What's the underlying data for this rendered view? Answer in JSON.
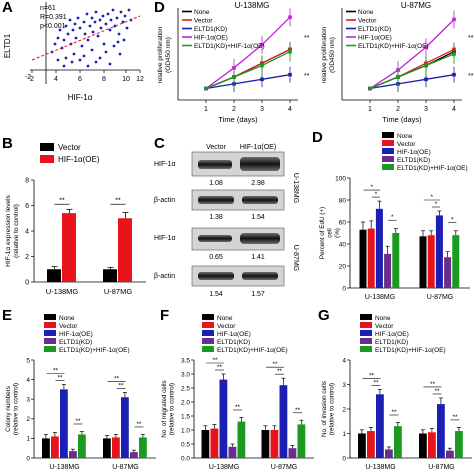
{
  "colors": {
    "none": "#000000",
    "vector": "#e8141c",
    "hif": "#1b1fb4",
    "eltd1": "#6a2c8e",
    "combo": "#1b9a22",
    "bar_red": "#e8141c",
    "trend": "#e8141c",
    "scatter": "#1b1fb4",
    "magenta": "#c020d8"
  },
  "panels": {
    "A": {
      "label": "A",
      "ylabel": "ELTD1",
      "xlabel": "HIF-1α",
      "stats": [
        "n=61",
        "R=0.391",
        "p<0.001"
      ],
      "xticks": [
        "2",
        "4",
        "6",
        "8",
        "10",
        "12"
      ],
      "yticks": [
        "-2"
      ]
    },
    "D_left": {
      "label": "D",
      "title": "U-138MG",
      "ylabel": [
        "relative proliferation",
        "(OD450 nm)"
      ],
      "xlabel": "Time (days)",
      "xticks": [
        "1",
        "2",
        "3",
        "4"
      ],
      "legend": [
        "None",
        "Vector",
        "ELTD1(KD)",
        "HIF-1α(OE)",
        "ELTD1(KD)+HIF-1α(OE)"
      ],
      "sig": [
        "**",
        "**"
      ]
    },
    "D_right": {
      "title": "U-87MG",
      "ylabel": [
        "relative proliferation",
        "(OD450 nm)"
      ],
      "xlabel": "Time (days)",
      "xticks": [
        "1",
        "2",
        "3",
        "4"
      ],
      "legend": [
        "None",
        "Vector",
        "ELTD1(KD)",
        "HIF-1α(OE)",
        "ELTD1(KD)+HIF-1α(OE)"
      ],
      "sig": [
        "**",
        "**"
      ]
    },
    "B": {
      "label": "B",
      "legend": [
        "Vector",
        "HIF-1α(OE)"
      ],
      "ylabel": [
        "HIF-1α expression levels",
        "(relative to control)"
      ],
      "groups": [
        "U-138MG",
        "U-87MG"
      ],
      "yticks": [
        "0",
        "2",
        "4",
        "6",
        "8"
      ],
      "sig": [
        "**",
        "**"
      ]
    },
    "C": {
      "label": "C",
      "cols": [
        "Vector",
        "HIF-1α(OE)"
      ],
      "u138": {
        "rows": [
          "HIF-1α",
          "β-actin"
        ],
        "values": [
          [
            "1.08",
            "2.98"
          ],
          [
            "1.38",
            "1.54"
          ]
        ],
        "cell": "U-138MG"
      },
      "u87": {
        "rows": [
          "HIF-1α",
          "β-actin"
        ],
        "values": [
          [
            "0.65",
            "1.41"
          ],
          [
            "1.54",
            "1.57"
          ]
        ],
        "cell": "U-87MG"
      }
    },
    "D_edu": {
      "label": "D",
      "legend": [
        "None",
        "Vector",
        "HIF-1α(OE)",
        "ELTD1(KD)",
        "ELTD1(KD)+HIF-1α(OE)"
      ],
      "ylabel": [
        "Percent of EdU (+)",
        "cell",
        "(%)"
      ],
      "groups": [
        "U-138MG",
        "U-87MG"
      ],
      "yticks": [
        "0",
        "20",
        "40",
        "60",
        "80",
        "100"
      ]
    },
    "E": {
      "label": "E",
      "legend": [
        "None",
        "Vector",
        "HIF-1α(OE)",
        "ELTD1(KD)",
        "ELTD1(KD)+HIF-1α(OE)"
      ],
      "ylabel": [
        "Colony numbers",
        "(relative to control)"
      ],
      "groups": [
        "U-138MG",
        "U-87MG"
      ],
      "yticks": [
        "0",
        "1",
        "2",
        "3",
        "4",
        "5"
      ]
    },
    "F": {
      "label": "F",
      "legend": [
        "None",
        "Vector",
        "HIF-1α(OE)",
        "ELTD1(KD)",
        "ELTD1(KD)+HIF-1α(OE)"
      ],
      "ylabel": [
        "No. of migrated cells",
        "(relative to control)"
      ],
      "groups": [
        "U-138MG",
        "U-87MG"
      ],
      "yticks": [
        "0.0",
        "0.5",
        "1.0",
        "1.5",
        "2.0",
        "2.5",
        "3.0",
        "3.5"
      ]
    },
    "G": {
      "label": "G",
      "legend": [
        "None",
        "Vector",
        "HIF-1α(OE)",
        "ELTD1(KD)",
        "ELTD1(KD)+HIF-1α(OE)"
      ],
      "ylabel": [
        "No. of invasion cells",
        "(relative to control)"
      ],
      "groups": [
        "U-138MG",
        "U-87MG"
      ],
      "yticks": [
        "0",
        "1",
        "2",
        "3",
        "4"
      ]
    }
  },
  "chart_data": [
    {
      "panel": "A",
      "type": "scatter",
      "xlabel": "HIF-1α",
      "ylabel": "ELTD1",
      "xlim": [
        2,
        12
      ],
      "annotations": [
        "n=61",
        "R=0.391",
        "p<0.001"
      ]
    },
    {
      "panel": "D",
      "type": "line",
      "title": "U-138MG",
      "xlabel": "Time (days)",
      "ylabel": "relative proliferation (OD450 nm)",
      "x": [
        1,
        2,
        3,
        4
      ],
      "series": [
        {
          "name": "None",
          "values": [
            0.5,
            1.0,
            1.6,
            2.2
          ]
        },
        {
          "name": "Vector",
          "values": [
            0.5,
            1.0,
            1.6,
            2.2
          ]
        },
        {
          "name": "ELTD1(KD)",
          "values": [
            0.5,
            0.7,
            0.9,
            1.1
          ]
        },
        {
          "name": "HIF-1α(OE)",
          "values": [
            0.5,
            1.4,
            2.4,
            3.6
          ]
        },
        {
          "name": "ELTD1(KD)+HIF-1α(OE)",
          "values": [
            0.5,
            1.0,
            1.5,
            2.1
          ]
        }
      ]
    },
    {
      "panel": "D",
      "type": "line",
      "title": "U-87MG",
      "xlabel": "Time (days)",
      "ylabel": "relative proliferation (OD450 nm)",
      "x": [
        1,
        2,
        3,
        4
      ],
      "series": [
        {
          "name": "None",
          "values": [
            0.5,
            1.0,
            1.5,
            2.1
          ]
        },
        {
          "name": "Vector",
          "values": [
            0.5,
            1.0,
            1.6,
            2.2
          ]
        },
        {
          "name": "ELTD1(KD)",
          "values": [
            0.5,
            0.7,
            0.9,
            1.1
          ]
        },
        {
          "name": "HIF-1α(OE)",
          "values": [
            0.5,
            1.3,
            2.3,
            3.5
          ]
        },
        {
          "name": "ELTD1(KD)+HIF-1α(OE)",
          "values": [
            0.5,
            1.0,
            1.5,
            2.0
          ]
        }
      ]
    },
    {
      "panel": "B",
      "type": "bar",
      "ylabel": "HIF-1α expression levels (relative to control)",
      "categories": [
        "U-138MG",
        "U-87MG"
      ],
      "ylim": [
        0,
        8
      ],
      "series": [
        {
          "name": "Vector",
          "values": [
            1.0,
            1.0
          ],
          "err": [
            0.2,
            0.15
          ]
        },
        {
          "name": "HIF-1α(OE)",
          "values": [
            5.4,
            5.0
          ],
          "err": [
            0.3,
            0.45
          ]
        }
      ]
    },
    {
      "panel": "D",
      "type": "bar",
      "ylabel": "Percent of EdU (+) cell (%)",
      "categories": [
        "U-138MG",
        "U-87MG"
      ],
      "ylim": [
        0,
        100
      ],
      "series": [
        {
          "name": "None",
          "values": [
            53,
            47
          ],
          "err": [
            7,
            5
          ]
        },
        {
          "name": "Vector",
          "values": [
            54,
            48
          ],
          "err": [
            7,
            4
          ]
        },
        {
          "name": "HIF-1α(OE)",
          "values": [
            72,
            66
          ],
          "err": [
            7,
            4
          ]
        },
        {
          "name": "ELTD1(KD)",
          "values": [
            31,
            28
          ],
          "err": [
            7,
            5
          ]
        },
        {
          "name": "ELTD1(KD)+HIF-1α(OE)",
          "values": [
            50,
            48
          ],
          "err": [
            4,
            4
          ]
        }
      ]
    },
    {
      "panel": "E",
      "type": "bar",
      "ylabel": "Colony numbers (relative to control)",
      "categories": [
        "U-138MG",
        "U-87MG"
      ],
      "ylim": [
        0,
        5
      ],
      "series": [
        {
          "name": "None",
          "values": [
            1.0,
            1.0
          ],
          "err": [
            0.2,
            0.15
          ]
        },
        {
          "name": "Vector",
          "values": [
            1.1,
            1.05
          ],
          "err": [
            0.2,
            0.15
          ]
        },
        {
          "name": "HIF-1α(OE)",
          "values": [
            3.5,
            3.1
          ],
          "err": [
            0.25,
            0.25
          ]
        },
        {
          "name": "ELTD1(KD)",
          "values": [
            0.35,
            0.3
          ],
          "err": [
            0.1,
            0.1
          ]
        },
        {
          "name": "ELTD1(KD)+HIF-1α(OE)",
          "values": [
            1.2,
            1.05
          ],
          "err": [
            0.15,
            0.15
          ]
        }
      ]
    },
    {
      "panel": "F",
      "type": "bar",
      "ylabel": "No. of migrated cells (relative to control)",
      "categories": [
        "U-138MG",
        "U-87MG"
      ],
      "ylim": [
        0,
        3.5
      ],
      "series": [
        {
          "name": "None",
          "values": [
            1.0,
            1.0
          ],
          "err": [
            0.15,
            0.15
          ]
        },
        {
          "name": "Vector",
          "values": [
            1.05,
            1.0
          ],
          "err": [
            0.15,
            0.15
          ]
        },
        {
          "name": "HIF-1α(OE)",
          "values": [
            2.8,
            2.6
          ],
          "err": [
            0.2,
            0.25
          ]
        },
        {
          "name": "ELTD1(KD)",
          "values": [
            0.4,
            0.35
          ],
          "err": [
            0.1,
            0.1
          ]
        },
        {
          "name": "ELTD1(KD)+HIF-1α(OE)",
          "values": [
            1.3,
            1.2
          ],
          "err": [
            0.15,
            0.15
          ]
        }
      ]
    },
    {
      "panel": "G",
      "type": "bar",
      "ylabel": "No. of invasion cells (relative to control)",
      "categories": [
        "U-138MG",
        "U-87MG"
      ],
      "ylim": [
        0,
        4
      ],
      "series": [
        {
          "name": "None",
          "values": [
            1.0,
            1.0
          ],
          "err": [
            0.15,
            0.15
          ]
        },
        {
          "name": "Vector",
          "values": [
            1.1,
            1.05
          ],
          "err": [
            0.15,
            0.15
          ]
        },
        {
          "name": "HIF-1α(OE)",
          "values": [
            2.6,
            2.2
          ],
          "err": [
            0.2,
            0.25
          ]
        },
        {
          "name": "ELTD1(KD)",
          "values": [
            0.35,
            0.3
          ],
          "err": [
            0.1,
            0.1
          ]
        },
        {
          "name": "ELTD1(KD)+HIF-1α(OE)",
          "values": [
            1.3,
            1.1
          ],
          "err": [
            0.15,
            0.15
          ]
        }
      ]
    }
  ]
}
